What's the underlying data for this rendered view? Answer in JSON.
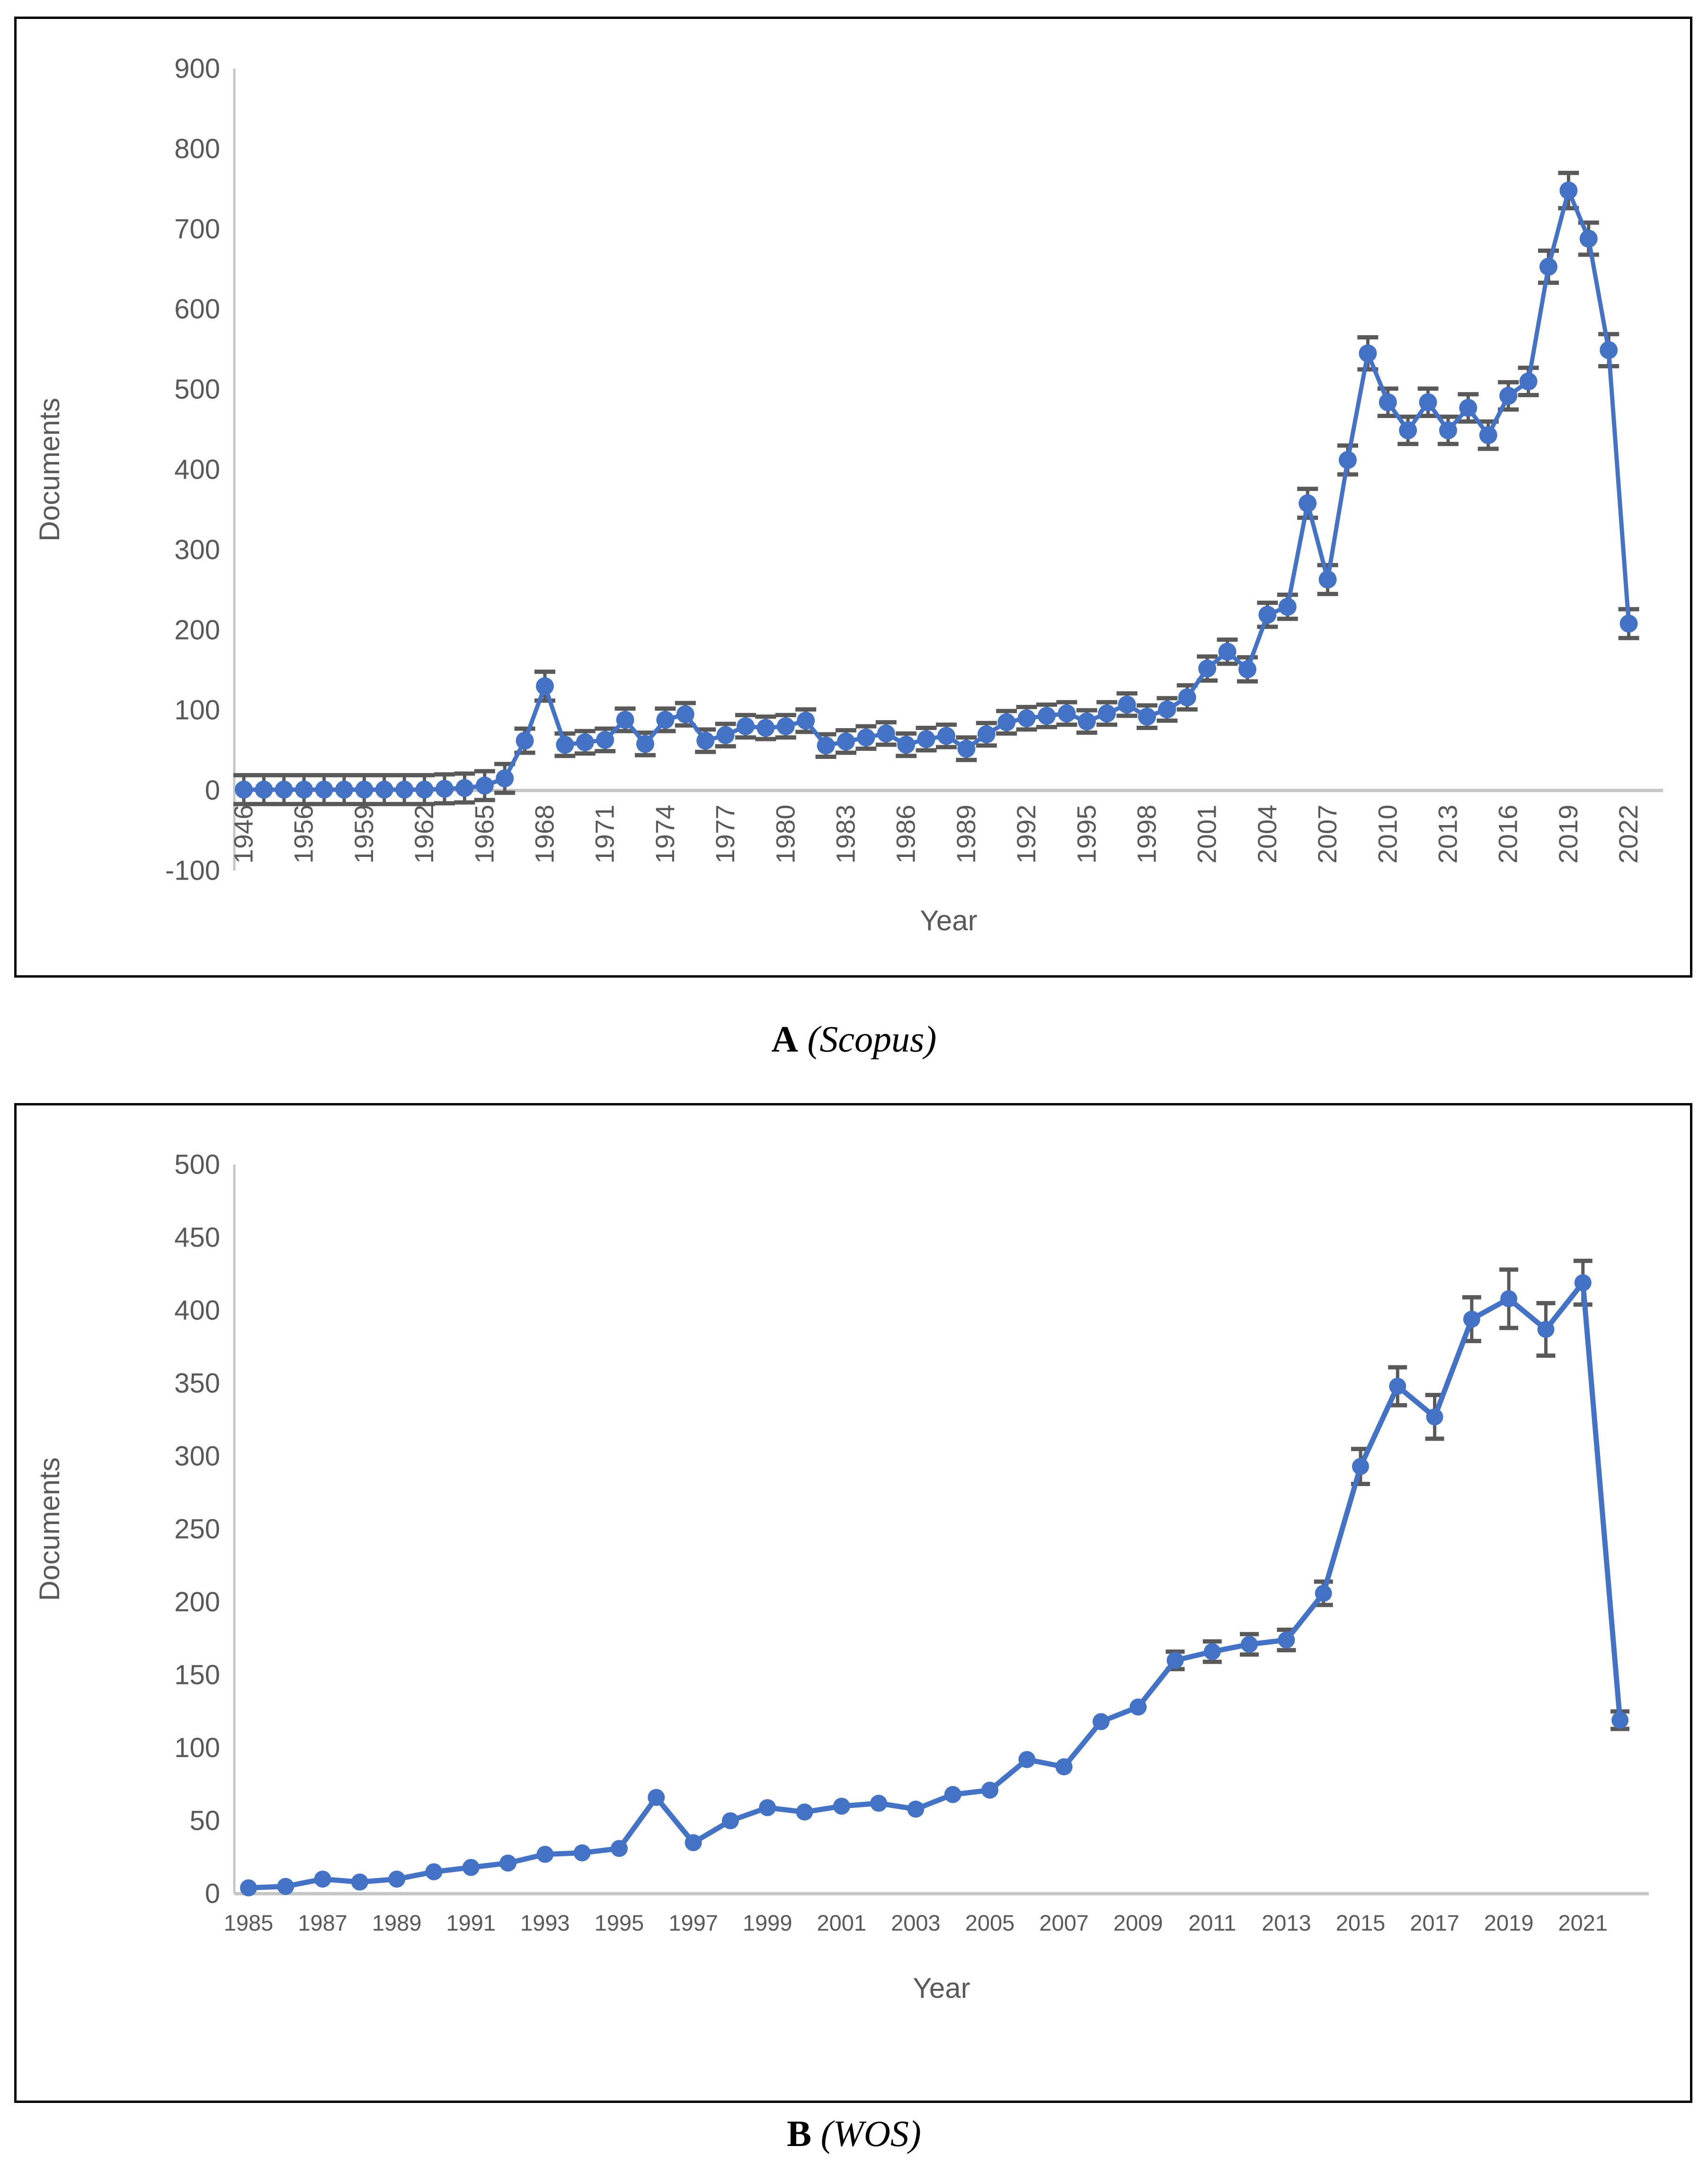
{
  "page": {
    "background": "#ffffff",
    "figure_type": "two-panel annual publications line charts with error bars"
  },
  "colors": {
    "series": "#4472C4",
    "error_bar": "#595959",
    "axis_line": "#C6C6C6",
    "tick_text": "#595959",
    "caption_text": "#000000"
  },
  "captions": [
    {
      "letter": "A",
      "source": "(Scopus)"
    },
    {
      "letter": "B",
      "source": "(WOS)"
    }
  ],
  "chart_data": [
    {
      "type": "line",
      "panel": "A",
      "title": "",
      "xlabel": "Year",
      "ylabel": "Documents",
      "ylim": [
        -100,
        900
      ],
      "grid": "off",
      "legend": "none",
      "marker": "circle",
      "error_bars": true,
      "y_tick_values": [
        900,
        800,
        700,
        600,
        500,
        400,
        300,
        200,
        100,
        0,
        -100
      ],
      "y_tick_labels": [
        "900",
        "800",
        "700",
        "600",
        "500",
        "400",
        "300",
        "200",
        "100",
        "0",
        "-100"
      ],
      "x_tick_step": 3,
      "x_tick_rotation": -90,
      "x_tick_labels": [
        "1946",
        "1956",
        "1959",
        "1962",
        "1965",
        "1968",
        "1971",
        "1974",
        "1977",
        "1980",
        "1983",
        "1986",
        "1989",
        "1992",
        "1995",
        "1998",
        "2001",
        "2004",
        "2007",
        "2010",
        "2013",
        "2016",
        "2019",
        "2022"
      ],
      "categories": [
        1946,
        1954,
        1955,
        1956,
        1957,
        1958,
        1959,
        1960,
        1961,
        1962,
        1963,
        1964,
        1965,
        1966,
        1967,
        1968,
        1969,
        1970,
        1971,
        1972,
        1973,
        1974,
        1975,
        1976,
        1977,
        1978,
        1979,
        1980,
        1981,
        1982,
        1983,
        1984,
        1985,
        1986,
        1987,
        1988,
        1989,
        1990,
        1991,
        1992,
        1993,
        1994,
        1995,
        1996,
        1997,
        1998,
        1999,
        2000,
        2001,
        2002,
        2003,
        2004,
        2005,
        2006,
        2007,
        2008,
        2009,
        2010,
        2011,
        2012,
        2013,
        2014,
        2015,
        2016,
        2017,
        2018,
        2019,
        2020,
        2021,
        2022
      ],
      "values": [
        1,
        1,
        1,
        1,
        1,
        1,
        1,
        1,
        1,
        1,
        2,
        3,
        6,
        15,
        62,
        130,
        57,
        60,
        63,
        88,
        58,
        88,
        95,
        62,
        69,
        80,
        78,
        80,
        87,
        56,
        61,
        66,
        71,
        57,
        64,
        68,
        52,
        70,
        85,
        90,
        93,
        96,
        86,
        96,
        107,
        92,
        101,
        116,
        152,
        173,
        151,
        219,
        229,
        358,
        263,
        412,
        545,
        484,
        449,
        484,
        449,
        477,
        443,
        492,
        510,
        653,
        748,
        688,
        549,
        208
      ],
      "errors": [
        18,
        18,
        18,
        18,
        18,
        18,
        18,
        18,
        18,
        18,
        18,
        18,
        18,
        18,
        15,
        18,
        14,
        14,
        14,
        14,
        14,
        14,
        14,
        14,
        14,
        14,
        14,
        14,
        14,
        14,
        14,
        14,
        14,
        14,
        14,
        14,
        14,
        14,
        14,
        14,
        14,
        14,
        14,
        14,
        14,
        14,
        14,
        15,
        15,
        15,
        15,
        15,
        15,
        18,
        18,
        18,
        20,
        17,
        17,
        17,
        17,
        17,
        17,
        17,
        17,
        20,
        22,
        20,
        20,
        18
      ]
    },
    {
      "type": "line",
      "panel": "B",
      "title": "",
      "xlabel": "Year",
      "ylabel": "Documents",
      "ylim": [
        0,
        500
      ],
      "grid": "off",
      "legend": "none",
      "marker": "circle",
      "error_bars": true,
      "y_tick_values": [
        500,
        450,
        400,
        350,
        300,
        250,
        200,
        150,
        100,
        50,
        0
      ],
      "y_tick_labels": [
        "500",
        "450",
        "400",
        "350",
        "300",
        "250",
        "200",
        "150",
        "100",
        "50",
        "0"
      ],
      "x_tick_step": 2,
      "x_tick_rotation": 0,
      "x_tick_labels": [
        "1985",
        "1987",
        "1989",
        "1991",
        "1993",
        "1995",
        "1997",
        "1999",
        "2001",
        "2003",
        "2005",
        "2007",
        "2009",
        "2011",
        "2013",
        "2015",
        "2017",
        "2019",
        "2021"
      ],
      "categories": [
        1985,
        1986,
        1987,
        1988,
        1989,
        1990,
        1991,
        1992,
        1993,
        1994,
        1995,
        1996,
        1997,
        1998,
        1999,
        2000,
        2001,
        2002,
        2003,
        2004,
        2005,
        2006,
        2007,
        2008,
        2009,
        2010,
        2011,
        2012,
        2013,
        2014,
        2015,
        2016,
        2017,
        2018,
        2019,
        2020,
        2021,
        2022
      ],
      "values": [
        4,
        5,
        10,
        8,
        10,
        15,
        18,
        21,
        27,
        28,
        31,
        66,
        35,
        50,
        59,
        56,
        60,
        62,
        58,
        68,
        71,
        92,
        87,
        118,
        128,
        160,
        166,
        171,
        174,
        206,
        293,
        348,
        327,
        394,
        408,
        387,
        419,
        119
      ],
      "errors": [
        0,
        0,
        0,
        0,
        0,
        0,
        0,
        0,
        0,
        0,
        0,
        0,
        0,
        0,
        0,
        0,
        0,
        0,
        0,
        0,
        0,
        0,
        0,
        0,
        0,
        6,
        7,
        7,
        7,
        8,
        12,
        13,
        15,
        15,
        20,
        18,
        15,
        6
      ]
    }
  ]
}
